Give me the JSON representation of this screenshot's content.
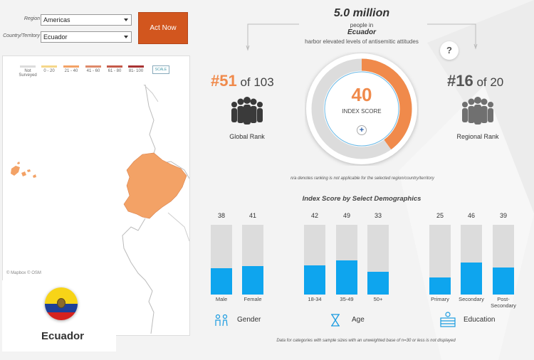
{
  "filters": {
    "region_label": "Region",
    "region_value": "Americas",
    "country_label": "Country/Territory",
    "country_value": "Ecuador",
    "act_button": "Act Now"
  },
  "map": {
    "legend": [
      {
        "label": "Not Surveyed",
        "color": "#dcdcdc"
      },
      {
        "label": "0 - 20",
        "color": "#f5d78a"
      },
      {
        "label": "21 - 40",
        "color": "#f3a266"
      },
      {
        "label": "41 - 60",
        "color": "#de8a6a"
      },
      {
        "label": "61 - 80",
        "color": "#c55a4a"
      },
      {
        "label": "81- 100",
        "color": "#a83232"
      }
    ],
    "scale_label": "SCALE",
    "credit": "© Mapbox © OSM",
    "highlight_color": "#f3a266"
  },
  "country_card": {
    "name": "Ecuador"
  },
  "headline": {
    "number": "5.0 million",
    "people_in": "people in",
    "country": "Ecuador",
    "description": "harbor elevated levels of antisemitic attitudes"
  },
  "global_rank": {
    "rank": "#51",
    "of": " of 103",
    "label": "Global Rank"
  },
  "regional_rank": {
    "rank": "#16",
    "of": " of 20",
    "label": "Regional Rank"
  },
  "index": {
    "score": "40",
    "score_value": 40,
    "label": "INDEX SCORE",
    "expand": "+"
  },
  "help": "?",
  "na_note": "n/a denotes ranking is not applicable for the selected region/country/territory",
  "demographics": {
    "title": "Index Score by Select Demographics",
    "groups": [
      {
        "label": "Gender",
        "bars": [
          {
            "cat": "Male",
            "value": 38
          },
          {
            "cat": "Female",
            "value": 41
          }
        ]
      },
      {
        "label": "Age",
        "bars": [
          {
            "cat": "18-34",
            "value": 42
          },
          {
            "cat": "35-49",
            "value": 49
          },
          {
            "cat": "50+",
            "value": 33
          }
        ]
      },
      {
        "label": "Education",
        "bars": [
          {
            "cat": "Primary",
            "value": 25
          },
          {
            "cat": "Secondary",
            "value": 46
          },
          {
            "cat": "Post-Secondary",
            "value": 39
          }
        ]
      }
    ],
    "footnote": "Data for categories with sample sizes with an unweighted base of n=30 or less is not displayed"
  },
  "colors": {
    "accent_orange": "#f08a4b",
    "rank_orange": "#f08a4b",
    "bar_blue": "#0ea5ee",
    "bar_track": "#dcdcdc",
    "act_button": "#d2561e"
  }
}
